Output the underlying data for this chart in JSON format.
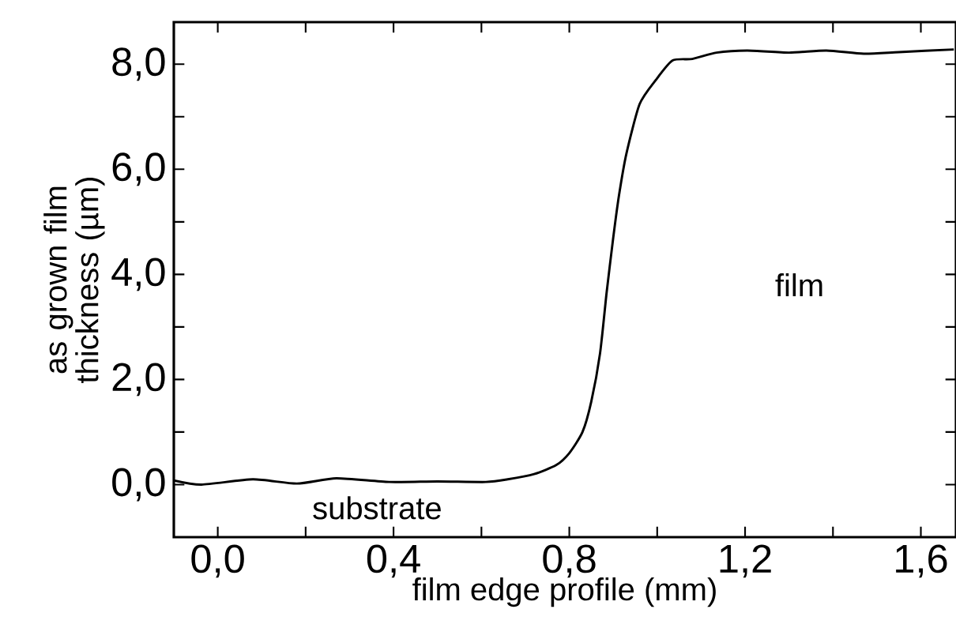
{
  "chart_data": {
    "type": "line",
    "xlabel": "film edge profile (mm)",
    "ylabel": "as grown film thickness (µm)",
    "x": [
      -0.1,
      -0.037,
      0.08,
      0.18,
      0.27,
      0.39,
      0.5,
      0.61,
      0.66,
      0.72,
      0.77,
      0.8,
      0.83,
      0.85,
      0.87,
      0.885,
      0.9,
      0.913,
      0.93,
      0.96,
      0.997,
      1.035,
      1.08,
      1.135,
      1.205,
      1.3,
      1.385,
      1.47,
      1.55,
      1.675
    ],
    "series": [
      {
        "color": "#000000",
        "values": [
          0.08,
          0.0,
          0.1,
          0.02,
          0.12,
          0.05,
          0.06,
          0.05,
          0.1,
          0.2,
          0.37,
          0.6,
          1.0,
          1.58,
          2.5,
          3.66,
          4.7,
          5.5,
          6.3,
          7.24,
          7.7,
          8.07,
          8.1,
          8.22,
          8.26,
          8.22,
          8.26,
          8.2,
          8.23,
          8.28
        ]
      }
    ],
    "xlim": [
      -0.1,
      1.68
    ],
    "ylim": [
      -1.0,
      8.8
    ],
    "xticks": [
      {
        "value": 0,
        "label": "0,0"
      },
      {
        "value": 0.2,
        "label": null
      },
      {
        "value": 0.4,
        "label": "0,4"
      },
      {
        "value": 0.6,
        "label": null
      },
      {
        "value": 0.8,
        "label": "0,8"
      },
      {
        "value": 1.0,
        "label": null
      },
      {
        "value": 1.2,
        "label": "1,2"
      },
      {
        "value": 1.4,
        "label": null
      },
      {
        "value": 1.6,
        "label": "1,6"
      }
    ],
    "yticks": [
      {
        "value": 0,
        "label": "0,0"
      },
      {
        "value": 1,
        "label": null
      },
      {
        "value": 2,
        "label": "2,0"
      },
      {
        "value": 3,
        "label": null
      },
      {
        "value": 4,
        "label": "4,0"
      },
      {
        "value": 5,
        "label": null
      },
      {
        "value": 6,
        "label": "6,0"
      },
      {
        "value": 7,
        "label": null
      },
      {
        "value": 8,
        "label": "8,0"
      }
    ],
    "annotations": [
      "substrate",
      "film"
    ],
    "grid": false,
    "legend": false,
    "marker": "none",
    "line_style": "solid"
  }
}
